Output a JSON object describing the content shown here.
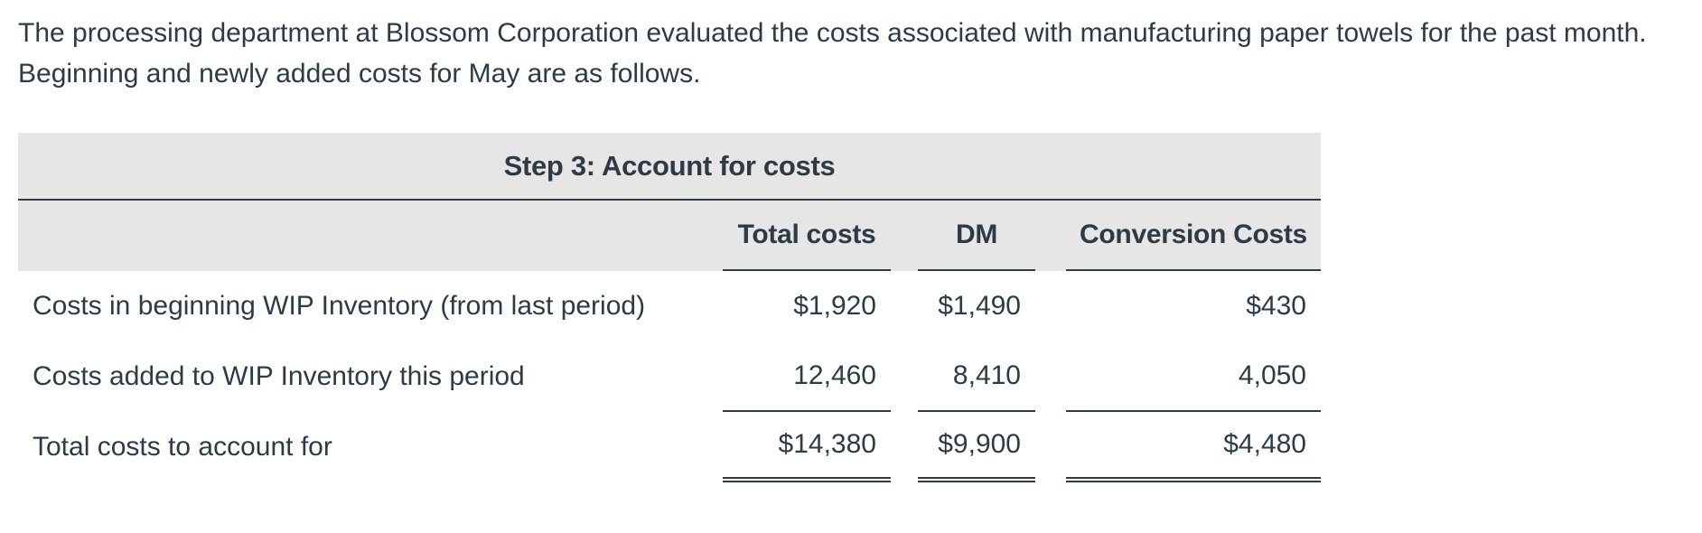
{
  "intro": {
    "text": "The processing department at Blossom Corporation evaluated the costs associated with manufacturing paper towels for the past month. Beginning and newly added costs for May are as follows."
  },
  "table": {
    "title": "Step 3: Account for costs",
    "columns": [
      "Total costs",
      "DM",
      "Conversion Costs"
    ],
    "rows": [
      {
        "label": "Costs in beginning WIP Inventory (from last period)",
        "total": "$1,920",
        "dm": "$1,490",
        "cc": "$430"
      },
      {
        "label": "Costs added to WIP Inventory this period",
        "total": "12,460",
        "dm": "8,410",
        "cc": "4,050"
      },
      {
        "label": "Total costs to account for",
        "total": "$14,380",
        "dm": "$9,900",
        "cc": "$4,480"
      }
    ]
  }
}
